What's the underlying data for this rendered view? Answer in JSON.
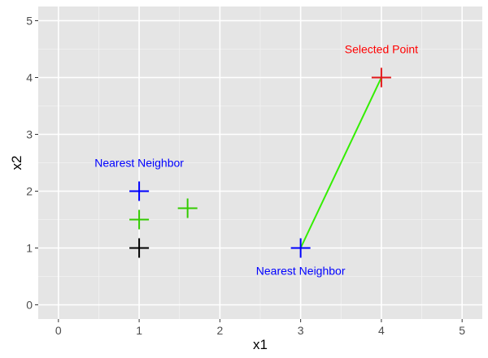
{
  "chart_data": {
    "type": "scatter",
    "xlabel": "x1",
    "ylabel": "x2",
    "xlim": [
      -0.25,
      5.25
    ],
    "ylim": [
      -0.25,
      5.25
    ],
    "x_ticks": [
      0,
      1,
      2,
      3,
      4,
      5
    ],
    "y_ticks": [
      0,
      1,
      2,
      3,
      4,
      5
    ],
    "grid": true,
    "background": "#e5e5e5",
    "points": [
      {
        "x": 4,
        "y": 4,
        "color": "#e41a1c",
        "marker": "plus"
      },
      {
        "x": 3,
        "y": 1,
        "color": "#0000ff",
        "marker": "plus"
      },
      {
        "x": 1,
        "y": 2,
        "color": "#0000ff",
        "marker": "plus"
      },
      {
        "x": 1,
        "y": 1.5,
        "color": "#33cc00",
        "marker": "plus"
      },
      {
        "x": 1.6,
        "y": 1.7,
        "color": "#33cc00",
        "marker": "plus"
      },
      {
        "x": 1,
        "y": 1,
        "color": "#000000",
        "marker": "plus"
      }
    ],
    "segments": [
      {
        "x1": 3,
        "y1": 1,
        "x2": 4,
        "y2": 4,
        "color": "#33ee00"
      }
    ],
    "annotations": [
      {
        "text": "Selected Point",
        "x": 4,
        "y": 4.5,
        "color": "#ff0000"
      },
      {
        "text": "Nearest Neighbor",
        "x": 1,
        "y": 2.5,
        "color": "#0000ff"
      },
      {
        "text": "Nearest Neighbor",
        "x": 3,
        "y": 0.6,
        "color": "#0000ff"
      }
    ]
  }
}
